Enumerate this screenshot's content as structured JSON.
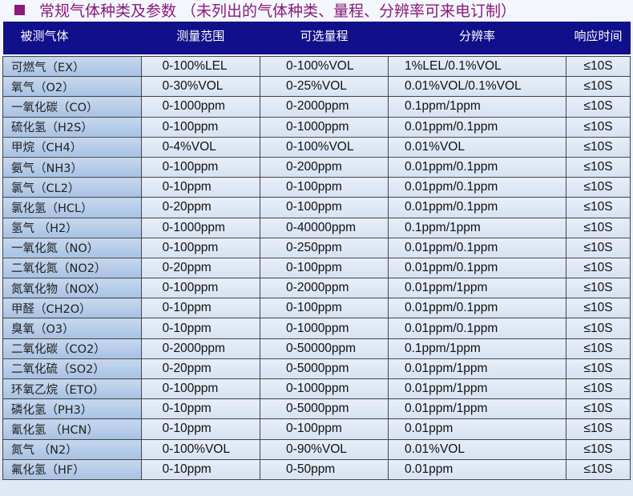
{
  "title": "常规气体种类及参数 （未列出的气体种类、量程、分辨率可来电订制）",
  "headers": [
    "被测气体",
    "测量范围",
    "可选量程",
    "分辨率",
    "响应时间"
  ],
  "rows": [
    [
      "可燃气（EX）",
      "0-100%LEL",
      "0-100%VOL",
      "1%LEL/0.1%VOL",
      "≤10S"
    ],
    [
      "氧气（O2）",
      "0-30%VOL",
      "0-25%VOL",
      "0.01%VOL/0.1%VOL",
      "≤10S"
    ],
    [
      "一氧化碳（CO）",
      "0-1000ppm",
      "0-2000ppm",
      "0.1ppm/1ppm",
      "≤10S"
    ],
    [
      "硫化氢（H2S）",
      "0-100ppm",
      "0-1000ppm",
      "0.01ppm/0.1ppm",
      "≤10S"
    ],
    [
      "甲烷（CH4）",
      "0-4%VOL",
      "0-100%VOL",
      "0.01%VOL",
      "≤10S"
    ],
    [
      "氨气（NH3）",
      "0-100ppm",
      "0-200ppm",
      "0.01ppm/0.1ppm",
      "≤10S"
    ],
    [
      "氯气（CL2）",
      "0-10ppm",
      "0-100ppm",
      "0.01ppm/0.1ppm",
      "≤10S"
    ],
    [
      "氯化氢（HCL）",
      "0-20ppm",
      "0-100ppm",
      "0.01ppm/0.1ppm",
      "≤10S"
    ],
    [
      "氢气 （H2）",
      "0-1000ppm",
      "0-40000ppm",
      "0.1ppm/1ppm",
      "≤10S"
    ],
    [
      "一氧化氮（NO）",
      "0-100ppm",
      "0-250ppm",
      "0.01ppm/0.1ppm",
      "≤10S"
    ],
    [
      "二氧化氮（NO2）",
      "0-20ppm",
      "0-100ppm",
      "0.01ppm/0.1ppm",
      "≤10S"
    ],
    [
      "氮氧化物（NOX）",
      "0-100ppm",
      "0-2000ppm",
      "0.01ppm/1ppm",
      "≤10S"
    ],
    [
      "甲醛（CH2O）",
      "0-10ppm",
      "0-100ppm",
      "0.01ppm/0.1ppm",
      "≤10S"
    ],
    [
      "臭氧（O3）",
      "0-10ppm",
      "0-1000ppm",
      "0.01ppm/0.1ppm",
      "≤10S"
    ],
    [
      "二氧化碳（CO2）",
      "0-2000ppm",
      "0-50000ppm",
      "0.1ppm/1ppm",
      "≤10S"
    ],
    [
      "二氧化硫（SO2）",
      "0-20ppm",
      "0-5000ppm",
      "0.01ppm/1ppm",
      "≤10S"
    ],
    [
      "环氧乙烷（ETO）",
      "0-100ppm",
      "0-1000ppm",
      "0.01ppm/1ppm",
      "≤10S"
    ],
    [
      "磷化氢（PH3）",
      "0-10ppm",
      "0-5000ppm",
      "0.01ppm/1ppm",
      "≤10S"
    ],
    [
      "氰化氢 （HCN）",
      "0-10ppm",
      "0-100ppm",
      "0.01ppm",
      "≤10S"
    ],
    [
      "氮气 （N2）",
      "0-100%VOL",
      "0-90%VOL",
      "0.01%VOL",
      "≤10S"
    ],
    [
      "氟化氢（HF）",
      "0-10ppm",
      "0-50ppm",
      "0.01ppm",
      "≤10S"
    ]
  ]
}
